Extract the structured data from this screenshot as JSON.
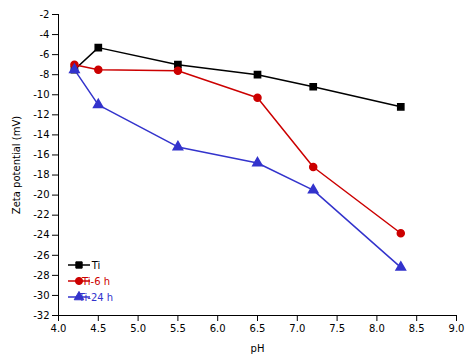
{
  "chart_data": {
    "type": "line",
    "xlabel": "pH",
    "ylabel": "Zeta potential (mV)",
    "x": [
      4.2,
      4.5,
      5.5,
      6.5,
      7.2,
      8.3
    ],
    "series": [
      {
        "name": "Ti",
        "color": "#000000",
        "marker": "square",
        "values": [
          -7.5,
          -5.3,
          -7.0,
          -8.0,
          -9.2,
          -11.2
        ]
      },
      {
        "name": "Ti-6 h",
        "color": "#cc0000",
        "marker": "circle",
        "values": [
          -7.0,
          -7.5,
          -7.6,
          -10.3,
          -17.2,
          -23.8
        ]
      },
      {
        "name": "Ti-24 h",
        "color": "#3333cc",
        "marker": "triangle",
        "values": [
          -7.5,
          -11.0,
          -15.2,
          -16.8,
          -19.5,
          -27.2
        ]
      }
    ],
    "xlim": [
      4.0,
      9.0
    ],
    "ylim": [
      -32,
      -2
    ],
    "xticks": [
      {
        "value": 4.0,
        "label": "4.0"
      },
      4.5,
      {
        "value": 5.0,
        "label": "5.0"
      },
      5.5,
      {
        "value": 6.0,
        "label": "6.0"
      },
      6.5,
      {
        "value": 7.0,
        "label": "7.0"
      },
      7.5,
      {
        "value": 8.0,
        "label": "8.0"
      },
      8.5,
      {
        "value": 9.0,
        "label": "9.0"
      }
    ],
    "yticks": [
      -32,
      -30,
      -28,
      -26,
      -24,
      -22,
      -20,
      -18,
      -16,
      -14,
      -12,
      -10,
      -8,
      -6,
      -4,
      -2
    ],
    "legend": "lower left"
  }
}
